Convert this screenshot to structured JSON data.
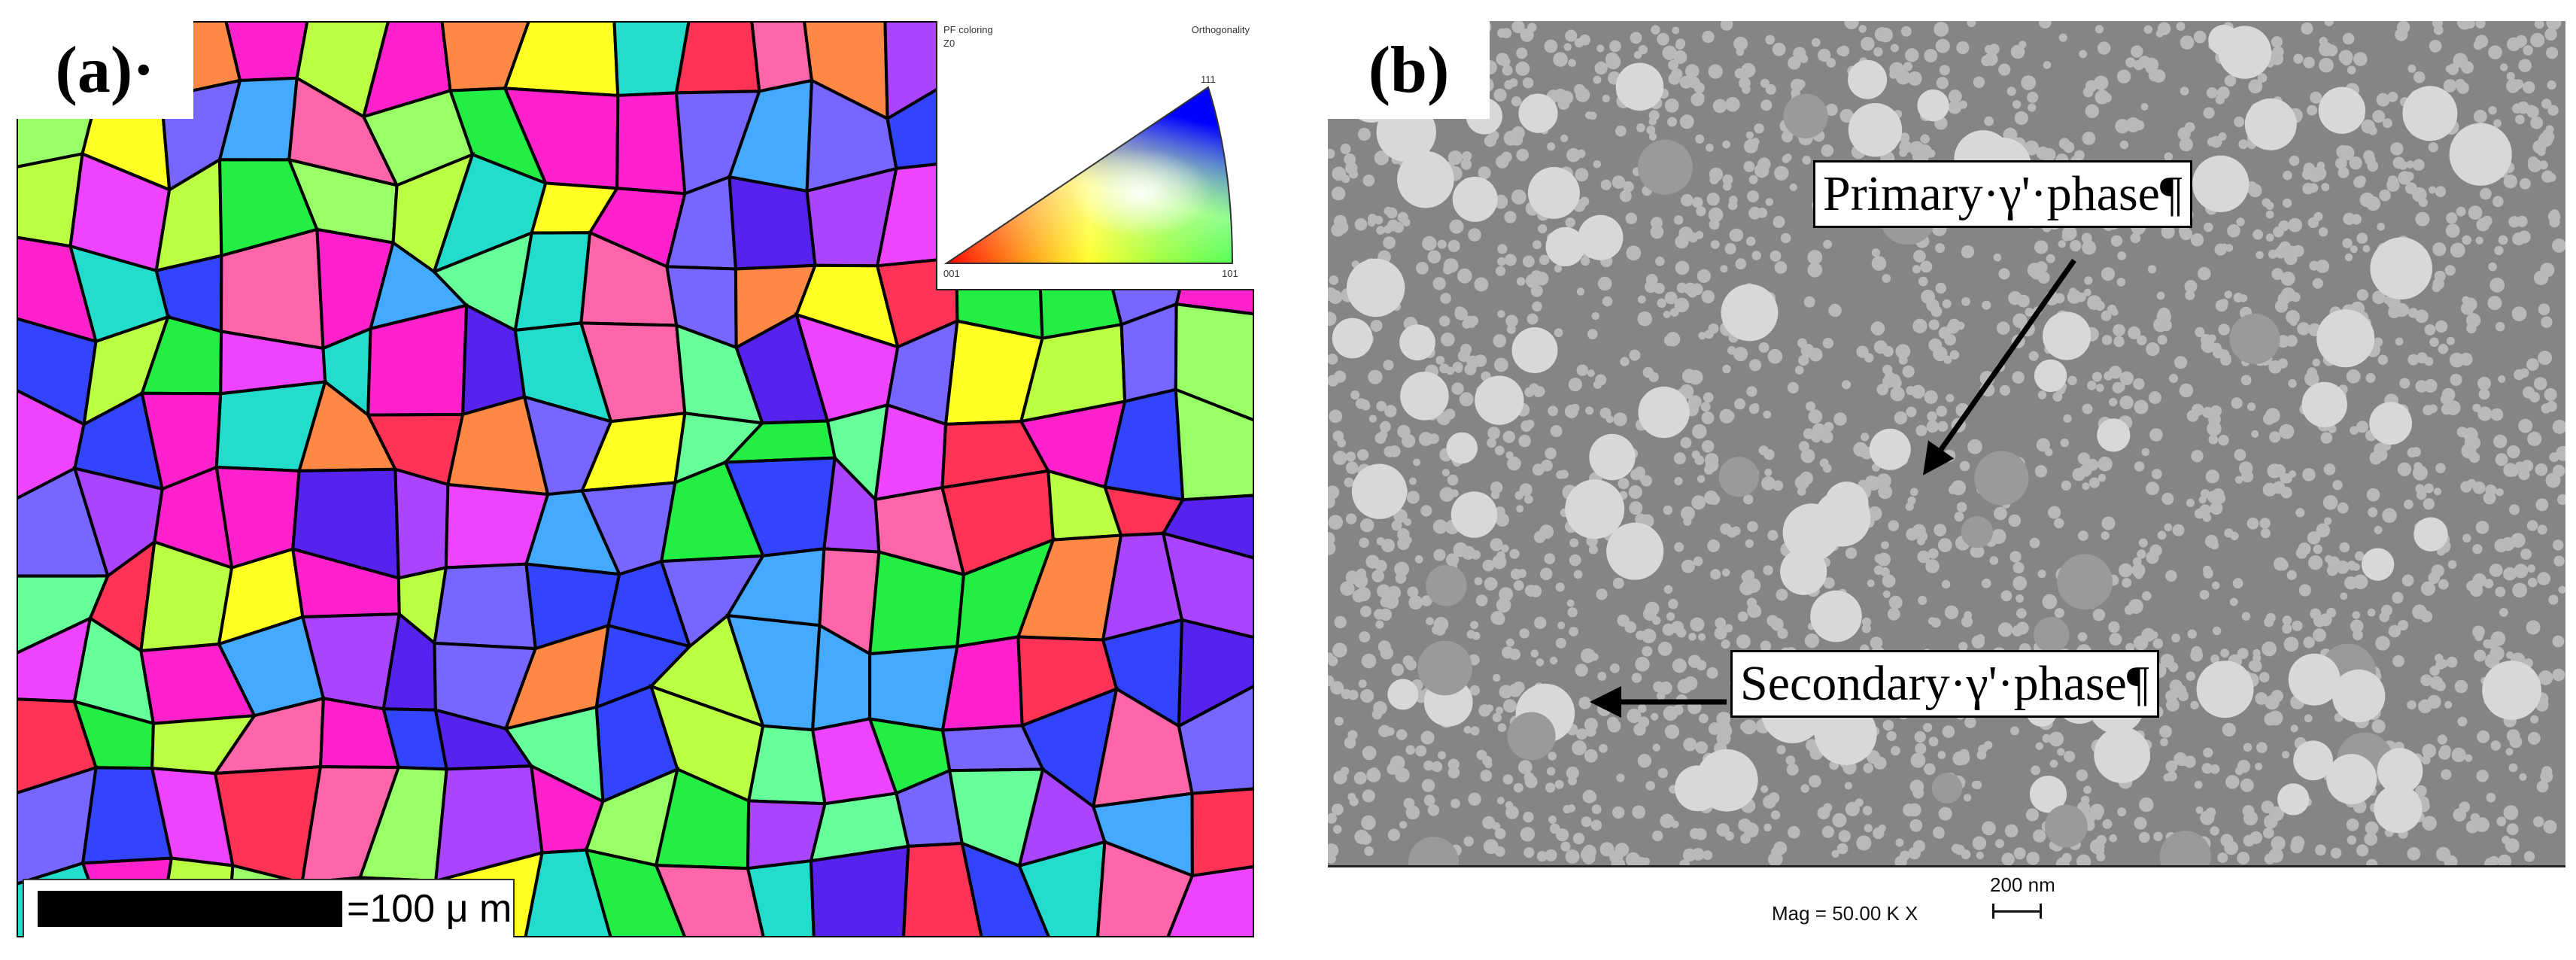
{
  "panel_a": {
    "label": "(a)·",
    "legend": {
      "title_left": "PF coloring",
      "title_right": "Orthogonality",
      "axis": "Z0",
      "vertex_top": "111",
      "vertex_left": "001",
      "vertex_right": "101"
    },
    "scale_text": "=100 μ m"
  },
  "panel_b": {
    "label": "(b)",
    "callout_primary": "Primary·γ'·phase¶",
    "callout_secondary": "Secondary·γ'·phase¶",
    "mag_text": "Mag =  50.00 K X",
    "scale_text": "200 nm"
  },
  "colors": {
    "grain_boundary": "#000000",
    "sem_background": "#858585",
    "precipitate": "#d8d8d8"
  }
}
